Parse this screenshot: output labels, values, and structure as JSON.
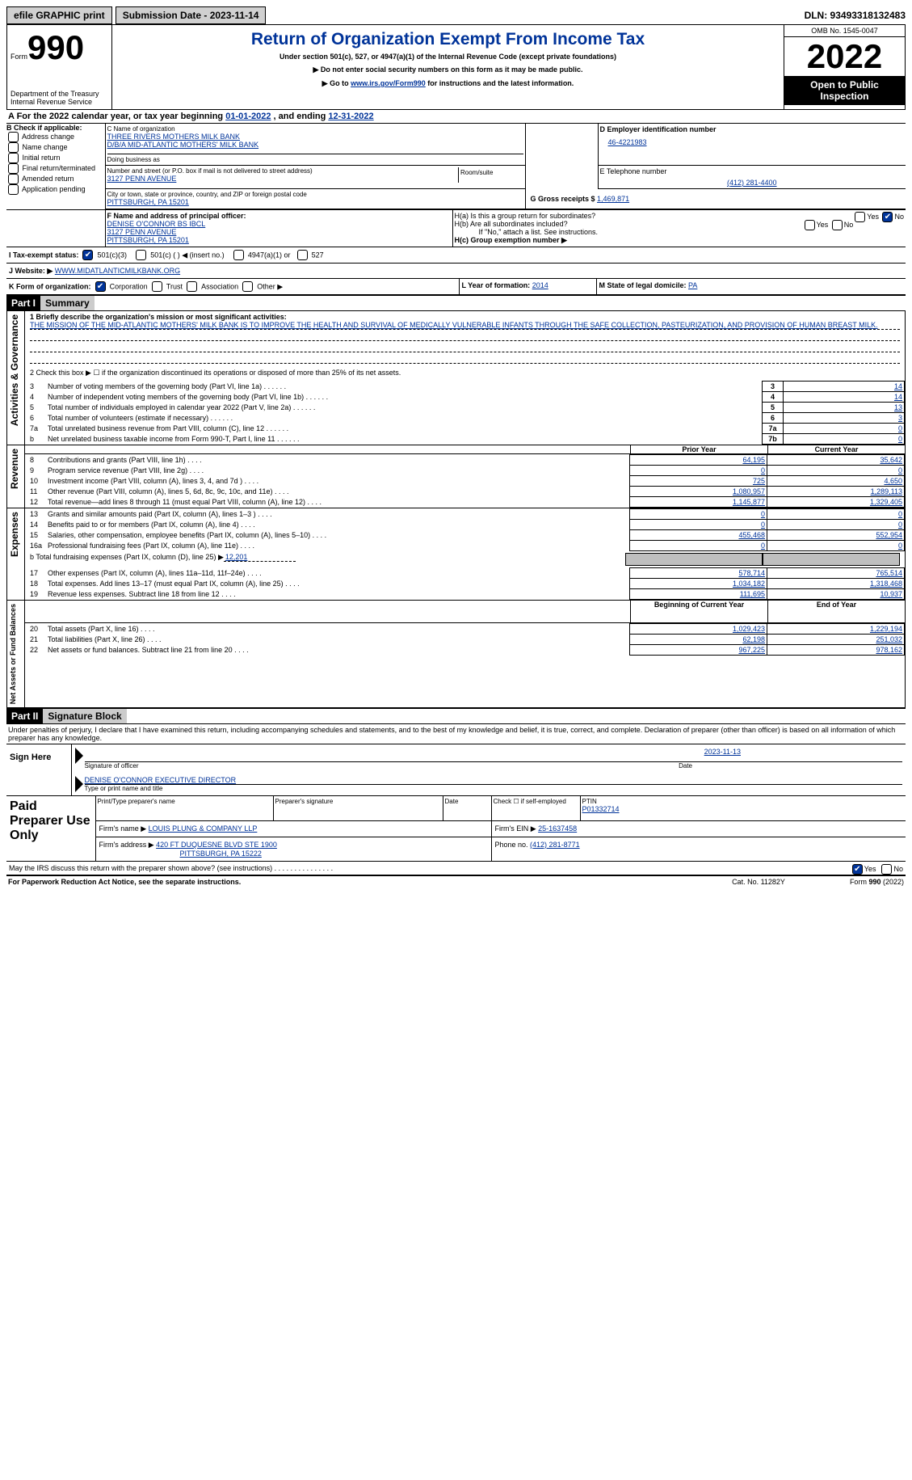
{
  "topbar": {
    "efile": "efile GRAPHIC print",
    "submission": "Submission Date - 2023-11-14",
    "dln": "DLN: 93493318132483"
  },
  "header": {
    "form_prefix": "Form",
    "form_num": "990",
    "title": "Return of Organization Exempt From Income Tax",
    "subtitle": "Under section 501(c), 527, or 4947(a)(1) of the Internal Revenue Code (except private foundations)",
    "warn": "▶ Do not enter social security numbers on this form as it may be made public.",
    "goto_prefix": "▶ Go to ",
    "goto_link": "www.irs.gov/Form990",
    "goto_suffix": " for instructions and the latest information.",
    "dept": "Department of the Treasury",
    "irs": "Internal Revenue Service",
    "omb": "OMB No. 1545-0047",
    "year": "2022",
    "open": "Open to Public Inspection"
  },
  "A": {
    "label": "A For the 2022 calendar year, or tax year beginning ",
    "begin": "01-01-2022",
    "mid": " , and ending ",
    "end": "12-31-2022"
  },
  "B": {
    "title": "B Check if applicable:",
    "items": [
      "Address change",
      "Name change",
      "Initial return",
      "Final return/terminated",
      "Amended return",
      "Application pending"
    ]
  },
  "C": {
    "name_lbl": "C Name of organization",
    "name": "THREE RIVERS MOTHERS MILK BANK",
    "dba": "D/B/A MID-ATLANTIC MOTHERS' MILK BANK",
    "dba_lbl": "Doing business as",
    "street_lbl": "Number and street (or P.O. box if mail is not delivered to street address)",
    "room_lbl": "Room/suite",
    "street": "3127 PENN AVENUE",
    "city_lbl": "City or town, state or province, country, and ZIP or foreign postal code",
    "city": "PITTSBURGH, PA  15201"
  },
  "D": {
    "lbl": "D Employer identification number",
    "val": "46-4221983"
  },
  "E": {
    "lbl": "E Telephone number",
    "val": "(412) 281-4400"
  },
  "G": {
    "lbl": "G Gross receipts $ ",
    "val": "1,469,871"
  },
  "F": {
    "lbl": "F  Name and address of principal officer:",
    "name": "DENISE O'CONNOR BS IBCL",
    "street": "3127 PENN AVENUE",
    "city": "PITTSBURGH, PA  15201"
  },
  "H": {
    "a": "H(a)  Is this a group return for subordinates?",
    "b": "H(b)  Are all subordinates included?",
    "b_note": "If \"No,\" attach a list. See instructions.",
    "c": "H(c)  Group exemption number ▶",
    "yes": "Yes",
    "no": "No"
  },
  "I": {
    "lbl": "I    Tax-exempt status:",
    "opts": [
      "501(c)(3)",
      "501(c) (  ) ◀ (insert no.)",
      "4947(a)(1) or",
      "527"
    ]
  },
  "J": {
    "lbl": "J   Website: ▶ ",
    "val": "WWW.MIDATLANTICMILKBANK.ORG"
  },
  "K": {
    "lbl": "K Form of organization:",
    "opts": [
      "Corporation",
      "Trust",
      "Association",
      "Other ▶"
    ]
  },
  "L": {
    "lbl": "L Year of formation: ",
    "val": "2014"
  },
  "M": {
    "lbl": "M State of legal domicile: ",
    "val": "PA"
  },
  "part1": {
    "hdr": "Part I",
    "title": "Summary",
    "l1_lbl": "1  Briefly describe the organization's mission or most significant activities:",
    "l1_txt": "THE MISSION OF THE MID-ATLANTIC MOTHERS' MILK BANK IS TO IMPROVE THE HEALTH AND SURVIVAL OF MEDICALLY VULNERABLE INFANTS THROUGH THE SAFE COLLECTION, PASTEURIZATION, AND PROVISION OF HUMAN BREAST MILK.",
    "l2": "2   Check this box ▶ ☐ if the organization discontinued its operations or disposed of more than 25% of its net assets.",
    "rows_a": [
      {
        "n": "3",
        "t": "Number of voting members of the governing body (Part VI, line 1a)",
        "b": "3",
        "v": "14"
      },
      {
        "n": "4",
        "t": "Number of independent voting members of the governing body (Part VI, line 1b)",
        "b": "4",
        "v": "14"
      },
      {
        "n": "5",
        "t": "Total number of individuals employed in calendar year 2022 (Part V, line 2a)",
        "b": "5",
        "v": "13"
      },
      {
        "n": "6",
        "t": "Total number of volunteers (estimate if necessary)",
        "b": "6",
        "v": "3"
      },
      {
        "n": "7a",
        "t": "Total unrelated business revenue from Part VIII, column (C), line 12",
        "b": "7a",
        "v": "0"
      },
      {
        "n": "b",
        "t": "Net unrelated business taxable income from Form 990-T, Part I, line 11",
        "b": "7b",
        "v": "0"
      }
    ],
    "prior": "Prior Year",
    "current": "Current Year",
    "revenue": [
      {
        "n": "8",
        "t": "Contributions and grants (Part VIII, line 1h)",
        "p": "64,195",
        "c": "35,642"
      },
      {
        "n": "9",
        "t": "Program service revenue (Part VIII, line 2g)",
        "p": "0",
        "c": "0"
      },
      {
        "n": "10",
        "t": "Investment income (Part VIII, column (A), lines 3, 4, and 7d )",
        "p": "725",
        "c": "4,650"
      },
      {
        "n": "11",
        "t": "Other revenue (Part VIII, column (A), lines 5, 6d, 8c, 9c, 10c, and 11e)",
        "p": "1,080,957",
        "c": "1,289,113"
      },
      {
        "n": "12",
        "t": "Total revenue—add lines 8 through 11 (must equal Part VIII, column (A), line 12)",
        "p": "1,145,877",
        "c": "1,329,405"
      }
    ],
    "expenses": [
      {
        "n": "13",
        "t": "Grants and similar amounts paid (Part IX, column (A), lines 1–3 )",
        "p": "0",
        "c": "0"
      },
      {
        "n": "14",
        "t": "Benefits paid to or for members (Part IX, column (A), line 4)",
        "p": "0",
        "c": "0"
      },
      {
        "n": "15",
        "t": "Salaries, other compensation, employee benefits (Part IX, column (A), lines 5–10)",
        "p": "455,468",
        "c": "552,954"
      },
      {
        "n": "16a",
        "t": "Professional fundraising fees (Part IX, column (A), line 11e)",
        "p": "0",
        "c": "0"
      }
    ],
    "l16b": "b  Total fundraising expenses (Part IX, column (D), line 25) ▶",
    "l16b_val": "12,201",
    "expenses2": [
      {
        "n": "17",
        "t": "Other expenses (Part IX, column (A), lines 11a–11d, 11f–24e)",
        "p": "578,714",
        "c": "765,514"
      },
      {
        "n": "18",
        "t": "Total expenses. Add lines 13–17 (must equal Part IX, column (A), line 25)",
        "p": "1,034,182",
        "c": "1,318,468"
      },
      {
        "n": "19",
        "t": "Revenue less expenses. Subtract line 18 from line 12",
        "p": "111,695",
        "c": "10,937"
      }
    ],
    "begin": "Beginning of Current Year",
    "end": "End of Year",
    "net": [
      {
        "n": "20",
        "t": "Total assets (Part X, line 16)",
        "p": "1,029,423",
        "c": "1,229,194"
      },
      {
        "n": "21",
        "t": "Total liabilities (Part X, line 26)",
        "p": "62,198",
        "c": "251,032"
      },
      {
        "n": "22",
        "t": "Net assets or fund balances. Subtract line 21 from line 20",
        "p": "967,225",
        "c": "978,162"
      }
    ],
    "side_ag": "Activities & Governance",
    "side_rev": "Revenue",
    "side_exp": "Expenses",
    "side_net": "Net Assets or Fund Balances"
  },
  "part2": {
    "hdr": "Part II",
    "title": "Signature Block",
    "decl": "Under penalties of perjury, I declare that I have examined this return, including accompanying schedules and statements, and to the best of my knowledge and belief, it is true, correct, and complete. Declaration of preparer (other than officer) is based on all information of which preparer has any knowledge.",
    "sign_here": "Sign Here",
    "sig_officer": "Signature of officer",
    "sig_date": "2023-11-13",
    "date_lbl": "Date",
    "officer_name": "DENISE O'CONNOR  EXECUTIVE DIRECTOR",
    "type_name": "Type or print name and title",
    "paid": "Paid Preparer Use Only",
    "prep_name_lbl": "Print/Type preparer's name",
    "prep_sig_lbl": "Preparer's signature",
    "check_self": "Check ☐ if self-employed",
    "ptin_lbl": "PTIN",
    "ptin": "P01332714",
    "firm_name_lbl": "Firm's name    ▶ ",
    "firm_name": "LOUIS PLUNG & COMPANY LLP",
    "firm_ein_lbl": "Firm's EIN ▶ ",
    "firm_ein": "25-1637458",
    "firm_addr_lbl": "Firm's address ▶ ",
    "firm_addr": "420 FT DUQUESNE BLVD STE 1900",
    "firm_city": "PITTSBURGH, PA  15222",
    "phone_lbl": "Phone no. ",
    "phone": "(412) 281-8771",
    "discuss": "May the IRS discuss this return with the preparer shown above? (see instructions)",
    "yes": "Yes",
    "no": "No"
  },
  "footer": {
    "pra": "For Paperwork Reduction Act Notice, see the separate instructions.",
    "cat": "Cat. No. 11282Y",
    "form": "Form 990 (2022)"
  }
}
